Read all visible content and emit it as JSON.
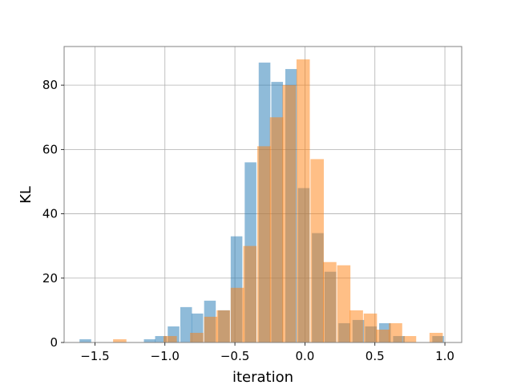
{
  "chart_data": {
    "type": "bar",
    "subtype": "overlapping-histogram",
    "title": "",
    "xlabel": "iteration",
    "ylabel": "KL",
    "xlim": [
      -1.72,
      1.12
    ],
    "ylim": [
      0,
      92
    ],
    "xticks": [
      -1.5,
      -1.0,
      -0.5,
      0.0,
      0.5,
      1.0
    ],
    "xtick_labels": [
      "−1.5",
      "−1.0",
      "−0.5",
      "0.0",
      "0.5",
      "1.0"
    ],
    "yticks": [
      0,
      20,
      40,
      60,
      80
    ],
    "ytick_labels": [
      "0",
      "20",
      "40",
      "60",
      "80"
    ],
    "grid": true,
    "legend": "none",
    "series": [
      {
        "color": "#1f77b4",
        "alpha": 0.5,
        "bin_width": 0.0833,
        "bins": [
          {
            "x0": -1.61,
            "count": 1
          },
          {
            "x0": -1.36,
            "count": 0
          },
          {
            "x0": -1.15,
            "count": 1
          },
          {
            "x0": -1.07,
            "count": 2
          },
          {
            "x0": -0.98,
            "count": 5
          },
          {
            "x0": -0.89,
            "count": 11
          },
          {
            "x0": -0.81,
            "count": 9
          },
          {
            "x0": -0.72,
            "count": 13
          },
          {
            "x0": -0.62,
            "count": 10
          },
          {
            "x0": -0.53,
            "count": 33
          },
          {
            "x0": -0.43,
            "count": 56
          },
          {
            "x0": -0.33,
            "count": 87
          },
          {
            "x0": -0.24,
            "count": 81
          },
          {
            "x0": -0.14,
            "count": 85
          },
          {
            "x0": -0.05,
            "count": 48
          },
          {
            "x0": 0.05,
            "count": 34
          },
          {
            "x0": 0.14,
            "count": 22
          },
          {
            "x0": 0.24,
            "count": 6
          },
          {
            "x0": 0.34,
            "count": 7
          },
          {
            "x0": 0.43,
            "count": 5
          },
          {
            "x0": 0.53,
            "count": 6
          },
          {
            "x0": 0.63,
            "count": 2
          },
          {
            "x0": 0.72,
            "count": 0
          },
          {
            "x0": 0.91,
            "count": 2
          }
        ]
      },
      {
        "color": "#ff7f0e",
        "alpha": 0.5,
        "bin_width": 0.095,
        "bins": [
          {
            "x0": -1.37,
            "count": 1
          },
          {
            "x0": -1.01,
            "count": 2
          },
          {
            "x0": -0.91,
            "count": 0
          },
          {
            "x0": -0.82,
            "count": 3
          },
          {
            "x0": -0.72,
            "count": 8
          },
          {
            "x0": -0.63,
            "count": 10
          },
          {
            "x0": -0.53,
            "count": 17
          },
          {
            "x0": -0.44,
            "count": 30
          },
          {
            "x0": -0.34,
            "count": 61
          },
          {
            "x0": -0.25,
            "count": 70
          },
          {
            "x0": -0.16,
            "count": 80
          },
          {
            "x0": -0.06,
            "count": 88
          },
          {
            "x0": 0.04,
            "count": 57
          },
          {
            "x0": 0.13,
            "count": 25
          },
          {
            "x0": 0.23,
            "count": 24
          },
          {
            "x0": 0.32,
            "count": 10
          },
          {
            "x0": 0.42,
            "count": 9
          },
          {
            "x0": 0.51,
            "count": 4
          },
          {
            "x0": 0.6,
            "count": 6
          },
          {
            "x0": 0.7,
            "count": 2
          },
          {
            "x0": 0.89,
            "count": 3
          }
        ]
      }
    ]
  }
}
